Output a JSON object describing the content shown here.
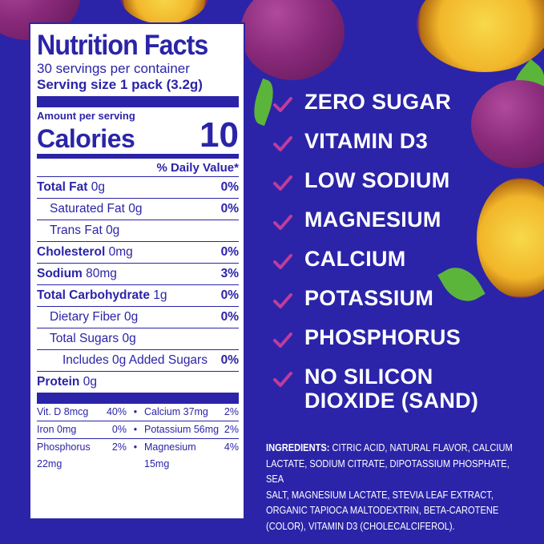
{
  "nutrition": {
    "title": "Nutrition Facts",
    "servings": "30 servings per container",
    "serving_size_label": "Serving size",
    "serving_size_value": "1 pack (3.2g)",
    "amount_per_serving": "Amount per serving",
    "calories_label": "Calories",
    "calories_value": "10",
    "dv_header": "% Daily Value*",
    "rows": [
      {
        "name": "Total Fat",
        "amount": "0g",
        "pct": "0%"
      },
      {
        "name": "Saturated Fat",
        "amount": "0g",
        "pct": "0%"
      },
      {
        "name": "Trans Fat",
        "amount": "0g",
        "pct": ""
      },
      {
        "name": "Cholesterol",
        "amount": "0mg",
        "pct": "0%"
      },
      {
        "name": "Sodium",
        "amount": "80mg",
        "pct": "3%"
      },
      {
        "name": "Total Carbohydrate",
        "amount": "1g",
        "pct": "0%"
      },
      {
        "name": "Dietary Fiber",
        "amount": "0g",
        "pct": "0%"
      },
      {
        "name": "Total Sugars",
        "amount": "0g",
        "pct": ""
      },
      {
        "name": "Includes 0g Added Sugars",
        "amount": "",
        "pct": "0%"
      },
      {
        "name": "Protein",
        "amount": "0g",
        "pct": ""
      }
    ],
    "vitamins": [
      {
        "a_name": "Vit. D 8mcg",
        "a_pct": "40%",
        "b_name": "Calcium 37mg",
        "b_pct": "2%"
      },
      {
        "a_name": "Iron 0mg",
        "a_pct": "0%",
        "b_name": "Potassium 56mg",
        "b_pct": "2%"
      },
      {
        "a_name": "Phosphorus 22mg",
        "a_pct": "2%",
        "b_name": "Magnesium 15mg",
        "b_pct": "4%"
      }
    ],
    "dot": "•"
  },
  "claims": [
    "ZERO SUGAR",
    "VITAMIN D3",
    "LOW SODIUM",
    "MAGNESIUM",
    "CALCIUM",
    "POTASSIUM",
    "PHOSPHORUS",
    "NO SILICON",
    "DIOXIDE (SAND)"
  ],
  "ingredients": {
    "label": "INGREDIENTS:",
    "lines": [
      "CITRIC ACID, NATURAL FLAVOR, CALCIUM",
      "LACTATE, SODIUM CITRATE, DIPOTASSIUM PHOSPHATE, SEA",
      "SALT, MAGNESIUM LACTATE, STEVIA LEAF EXTRACT,",
      "ORGANIC TAPIOCA MALTODEXTRIN, BETA-CAROTENE",
      "(COLOR), VITAMIN D3 (CHOLECALCIFEROL)."
    ]
  },
  "colors": {
    "background": "#2b24a8",
    "checkmark": "#c03c9c",
    "label_ink": "#2b24a8"
  }
}
